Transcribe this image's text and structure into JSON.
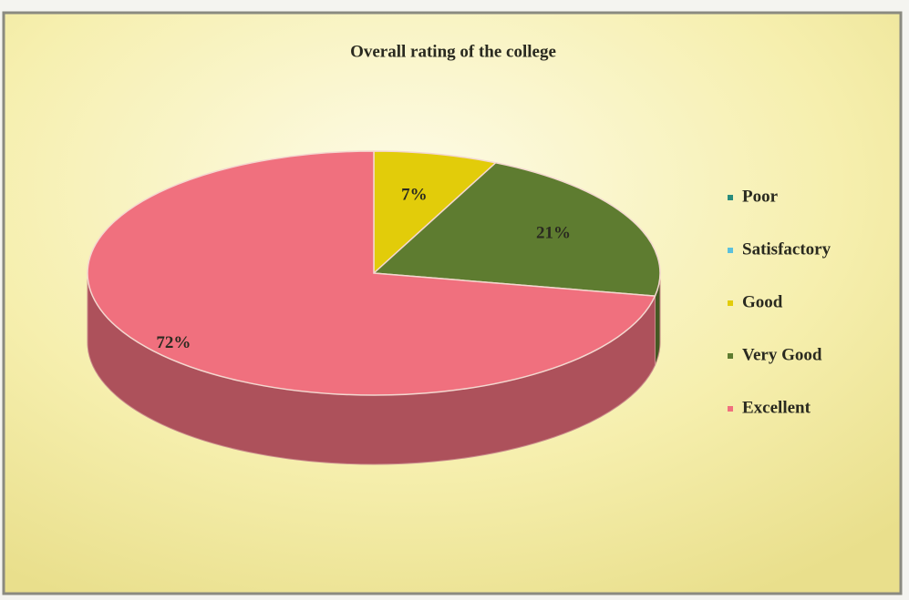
{
  "chart_data": {
    "type": "pie",
    "title": "Overall rating of the college",
    "categories": [
      "Poor",
      "Satisfactory",
      "Good",
      "Very Good",
      "Excellent"
    ],
    "values": [
      0,
      0,
      7,
      21,
      72
    ],
    "value_labels": [
      null,
      null,
      "7%",
      "21%",
      "72%"
    ],
    "colors": [
      "#2a8c7c",
      "#5cc0dc",
      "#e2cc0a",
      "#5e7c30",
      "#f0707e"
    ],
    "legend": "right"
  }
}
